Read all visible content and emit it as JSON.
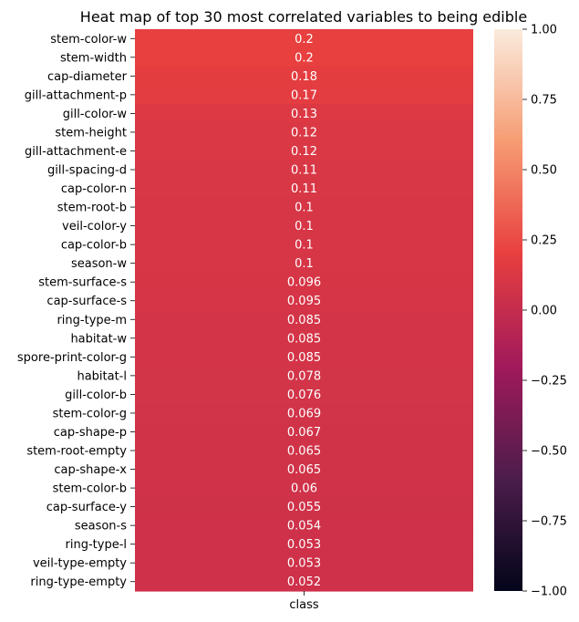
{
  "chart_data": {
    "type": "heatmap",
    "title": "Heat map of top 30 most correlated variables to being edible",
    "xlabel": "",
    "ylabel": "",
    "columns": [
      "class"
    ],
    "rows": [
      "stem-color-w",
      "stem-width",
      "cap-diameter",
      "gill-attachment-p",
      "gill-color-w",
      "stem-height",
      "gill-attachment-e",
      "gill-spacing-d",
      "cap-color-n",
      "stem-root-b",
      "veil-color-y",
      "cap-color-b",
      "season-w",
      "stem-surface-s",
      "cap-surface-s",
      "ring-type-m",
      "habitat-w",
      "spore-print-color-g",
      "habitat-l",
      "gill-color-b",
      "stem-color-g",
      "cap-shape-p",
      "stem-root-empty",
      "cap-shape-x",
      "stem-color-b",
      "cap-surface-y",
      "season-s",
      "ring-type-l",
      "veil-type-empty",
      "ring-type-empty"
    ],
    "values": [
      0.2,
      0.2,
      0.18,
      0.17,
      0.13,
      0.12,
      0.12,
      0.11,
      0.11,
      0.1,
      0.1,
      0.1,
      0.1,
      0.096,
      0.095,
      0.085,
      0.085,
      0.085,
      0.078,
      0.076,
      0.069,
      0.067,
      0.065,
      0.065,
      0.06,
      0.055,
      0.054,
      0.053,
      0.053,
      0.052
    ],
    "annotations": [
      "0.2",
      "0.2",
      "0.18",
      "0.17",
      "0.13",
      "0.12",
      "0.12",
      "0.11",
      "0.11",
      "0.1",
      "0.1",
      "0.1",
      "0.1",
      "0.096",
      "0.095",
      "0.085",
      "0.085",
      "0.085",
      "0.078",
      "0.076",
      "0.069",
      "0.067",
      "0.065",
      "0.065",
      "0.06",
      "0.055",
      "0.054",
      "0.053",
      "0.053",
      "0.052"
    ],
    "colorbar": {
      "range": [
        -1.0,
        1.0
      ],
      "ticks": [
        "1.00",
        "0.75",
        "0.50",
        "0.25",
        "0.00",
        "−0.25",
        "−0.50",
        "−0.75",
        "−1.00"
      ],
      "tick_values": [
        1.0,
        0.75,
        0.5,
        0.25,
        0.0,
        -0.25,
        -0.5,
        -0.75,
        -1.0
      ],
      "colormap": "rocket",
      "colormap_stops": [
        "#03051a",
        "#4c1d4b",
        "#a11a5b",
        "#e83f3f",
        "#f69c73",
        "#faebdd"
      ]
    },
    "grid": false
  }
}
